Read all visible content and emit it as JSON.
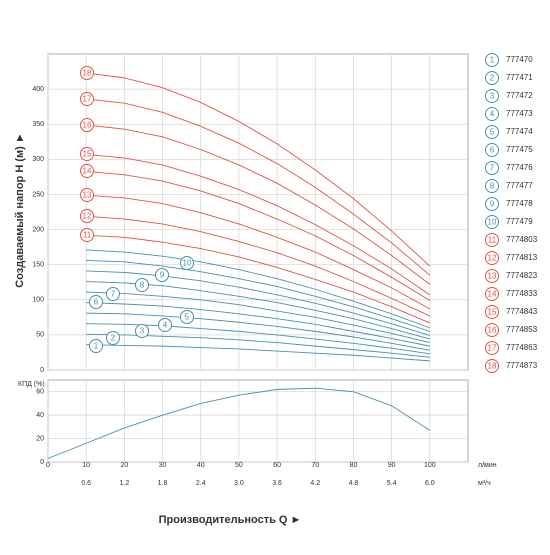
{
  "chart_data": [
    {
      "type": "line",
      "y_label": "Создаваемый напор H (м) ►",
      "x": [
        10,
        20,
        30,
        40,
        50,
        60,
        70,
        80,
        90,
        100
      ],
      "xlim": [
        0,
        110
      ],
      "ylim": [
        0,
        450
      ],
      "yticks": [
        0,
        50,
        100,
        150,
        200,
        250,
        300,
        350,
        400
      ],
      "grid": true,
      "series": [
        {
          "label": "1",
          "name": "777470",
          "color": "#4a8fb0",
          "values": [
            36,
            35,
            34,
            32,
            30,
            27,
            24,
            21,
            17,
            13
          ]
        },
        {
          "label": "2",
          "name": "777471",
          "color": "#4a8fb0",
          "values": [
            51,
            50,
            48,
            46,
            43,
            39,
            34,
            29,
            24,
            18
          ]
        },
        {
          "label": "3",
          "name": "777472",
          "color": "#4a8fb0",
          "values": [
            66,
            65,
            63,
            59,
            55,
            50,
            44,
            38,
            31,
            23
          ]
        },
        {
          "label": "4",
          "name": "777473",
          "color": "#4a8fb0",
          "values": [
            81,
            80,
            77,
            73,
            68,
            62,
            55,
            47,
            38,
            28
          ]
        },
        {
          "label": "5",
          "name": "777474",
          "color": "#4a8fb0",
          "values": [
            96,
            94,
            91,
            86,
            80,
            73,
            65,
            55,
            45,
            34
          ]
        },
        {
          "label": "6",
          "name": "777475",
          "color": "#4a8fb0",
          "values": [
            111,
            109,
            105,
            100,
            93,
            84,
            75,
            64,
            52,
            39
          ]
        },
        {
          "label": "7",
          "name": "777476",
          "color": "#4a8fb0",
          "values": [
            126,
            124,
            120,
            113,
            105,
            96,
            85,
            73,
            59,
            44
          ]
        },
        {
          "label": "8",
          "name": "777477",
          "color": "#4a8fb0",
          "values": [
            141,
            139,
            134,
            127,
            118,
            107,
            95,
            81,
            66,
            49
          ]
        },
        {
          "label": "9",
          "name": "777478",
          "color": "#4a8fb0",
          "values": [
            156,
            154,
            148,
            140,
            130,
            119,
            105,
            90,
            73,
            55
          ]
        },
        {
          "label": "10",
          "name": "777479",
          "color": "#4a8fb0",
          "values": [
            171,
            168,
            162,
            154,
            143,
            130,
            115,
            98,
            80,
            60
          ]
        },
        {
          "label": "11",
          "name": "7774803",
          "color": "#e0534a",
          "values": [
            192,
            189,
            182,
            173,
            161,
            146,
            129,
            111,
            90,
            67
          ]
        },
        {
          "label": "12",
          "name": "7774813",
          "color": "#e0534a",
          "values": [
            219,
            215,
            208,
            197,
            183,
            167,
            148,
            126,
            102,
            77
          ]
        },
        {
          "label": "13",
          "name": "7774823",
          "color": "#e0534a",
          "values": [
            249,
            245,
            237,
            224,
            208,
            189,
            168,
            143,
            117,
            87
          ]
        },
        {
          "label": "14",
          "name": "7774833",
          "color": "#e0534a",
          "values": [
            283,
            278,
            269,
            255,
            237,
            215,
            191,
            163,
            132,
            99
          ]
        },
        {
          "label": "15",
          "name": "7774843",
          "color": "#e0534a",
          "values": [
            307,
            302,
            292,
            276,
            257,
            234,
            207,
            177,
            144,
            107
          ]
        },
        {
          "label": "16",
          "name": "7774853",
          "color": "#e0534a",
          "values": [
            349,
            343,
            332,
            314,
            292,
            266,
            235,
            201,
            163,
            122
          ]
        },
        {
          "label": "17",
          "name": "7774863",
          "color": "#e0534a",
          "values": [
            386,
            380,
            367,
            347,
            323,
            294,
            260,
            222,
            181,
            135
          ]
        },
        {
          "label": "18",
          "name": "7774873",
          "color": "#e0534a",
          "values": [
            423,
            416,
            402,
            381,
            354,
            322,
            285,
            244,
            198,
            148
          ]
        }
      ]
    },
    {
      "type": "line",
      "y_label": "КПД (%)",
      "x_label": "Производительность Q ►",
      "x_unit": "л/мин",
      "x2_unit": "м³/ч",
      "x": [
        0,
        10,
        20,
        30,
        40,
        50,
        60,
        70,
        80,
        90,
        100
      ],
      "xlim": [
        0,
        110
      ],
      "xticks": [
        0,
        10,
        20,
        30,
        40,
        50,
        60,
        70,
        80,
        90,
        100
      ],
      "x2ticks": [
        {
          "value": 10,
          "label": "0.6"
        },
        {
          "value": 20,
          "label": "1.2"
        },
        {
          "value": 30,
          "label": "1.8"
        },
        {
          "value": 40,
          "label": "2.4"
        },
        {
          "value": 50,
          "label": "3.0"
        },
        {
          "value": 60,
          "label": "3.6"
        },
        {
          "value": 70,
          "label": "4.2"
        },
        {
          "value": 80,
          "label": "4.8"
        },
        {
          "value": 90,
          "label": "5.4"
        },
        {
          "value": 100,
          "label": "6.0"
        }
      ],
      "ylim": [
        0,
        70
      ],
      "yticks": [
        0,
        20,
        40,
        60
      ],
      "grid": true,
      "series": [
        {
          "color": "#4a8fb0",
          "values": [
            3,
            16,
            29,
            40,
            50,
            57,
            62,
            63,
            60,
            48,
            27
          ]
        }
      ]
    }
  ]
}
